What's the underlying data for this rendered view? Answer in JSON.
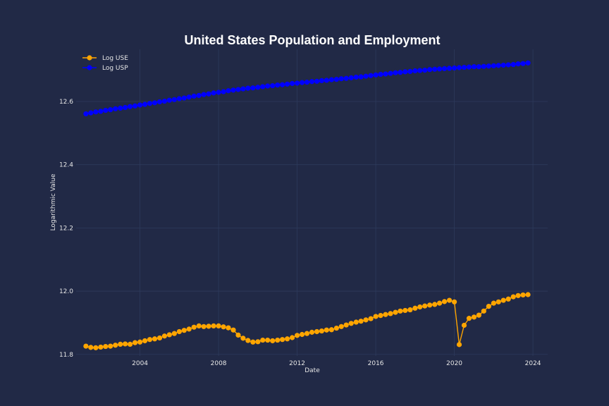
{
  "chart_data": {
    "type": "line",
    "title": "United States Population and Employment",
    "xlabel": "Date",
    "ylabel": "Logarithmic Value",
    "xlim": [
      "2000-10-01",
      "2024-10-01"
    ],
    "ylim": [
      11.795,
      12.765
    ],
    "x_ticks": [
      "2004",
      "2008",
      "2012",
      "2016",
      "2020",
      "2024"
    ],
    "y_ticks": [
      "11.8",
      "12.0",
      "12.2",
      "12.4",
      "12.6"
    ],
    "grid": true,
    "legend_position": "top-left",
    "x": [
      "2001-04-01",
      "2001-07-01",
      "2001-10-01",
      "2002-01-01",
      "2002-04-01",
      "2002-07-01",
      "2002-10-01",
      "2003-01-01",
      "2003-04-01",
      "2003-07-01",
      "2003-10-01",
      "2004-01-01",
      "2004-04-01",
      "2004-07-01",
      "2004-10-01",
      "2005-01-01",
      "2005-04-01",
      "2005-07-01",
      "2005-10-01",
      "2006-01-01",
      "2006-04-01",
      "2006-07-01",
      "2006-10-01",
      "2007-01-01",
      "2007-04-01",
      "2007-07-01",
      "2007-10-01",
      "2008-01-01",
      "2008-04-01",
      "2008-07-01",
      "2008-10-01",
      "2009-01-01",
      "2009-04-01",
      "2009-07-01",
      "2009-10-01",
      "2010-01-01",
      "2010-04-01",
      "2010-07-01",
      "2010-10-01",
      "2011-01-01",
      "2011-04-01",
      "2011-07-01",
      "2011-10-01",
      "2012-01-01",
      "2012-04-01",
      "2012-07-01",
      "2012-10-01",
      "2013-01-01",
      "2013-04-01",
      "2013-07-01",
      "2013-10-01",
      "2014-01-01",
      "2014-04-01",
      "2014-07-01",
      "2014-10-01",
      "2015-01-01",
      "2015-04-01",
      "2015-07-01",
      "2015-10-01",
      "2016-01-01",
      "2016-04-01",
      "2016-07-01",
      "2016-10-01",
      "2017-01-01",
      "2017-04-01",
      "2017-07-01",
      "2017-10-01",
      "2018-01-01",
      "2018-04-01",
      "2018-07-01",
      "2018-10-01",
      "2019-01-01",
      "2019-04-01",
      "2019-07-01",
      "2019-10-01",
      "2020-01-01",
      "2020-04-01",
      "2020-07-01",
      "2020-10-01",
      "2021-01-01",
      "2021-04-01",
      "2021-07-01",
      "2021-10-01",
      "2022-01-01",
      "2022-04-01",
      "2022-07-01",
      "2022-10-01",
      "2023-01-01",
      "2023-04-01",
      "2023-07-01",
      "2023-10-01"
    ],
    "series": [
      {
        "name": "Log USE",
        "color": "#ffa500",
        "values": [
          11.826,
          11.822,
          11.821,
          11.823,
          11.825,
          11.826,
          11.829,
          11.832,
          11.833,
          11.832,
          11.837,
          11.839,
          11.843,
          11.847,
          11.849,
          11.852,
          11.858,
          11.862,
          11.866,
          11.872,
          11.876,
          11.88,
          11.886,
          11.89,
          11.888,
          11.889,
          11.89,
          11.89,
          11.887,
          11.884,
          11.877,
          11.861,
          11.851,
          11.844,
          11.839,
          11.84,
          11.845,
          11.845,
          11.843,
          11.845,
          11.847,
          11.849,
          11.853,
          11.86,
          11.863,
          11.866,
          11.87,
          11.872,
          11.874,
          11.877,
          11.878,
          11.883,
          11.888,
          11.893,
          11.898,
          11.902,
          11.905,
          11.909,
          11.913,
          11.92,
          11.923,
          11.926,
          11.929,
          11.933,
          11.937,
          11.939,
          11.941,
          11.946,
          11.95,
          11.953,
          11.956,
          11.958,
          11.962,
          11.967,
          11.971,
          11.966,
          11.831,
          11.892,
          11.914,
          11.918,
          11.924,
          11.937,
          11.952,
          11.962,
          11.966,
          11.971,
          11.975,
          11.982,
          11.986,
          11.988,
          11.989
        ]
      },
      {
        "name": "Log USP",
        "color": "#0000ff",
        "values": [
          12.561,
          12.564,
          12.567,
          12.569,
          12.572,
          12.574,
          12.577,
          12.579,
          12.581,
          12.584,
          12.586,
          12.589,
          12.591,
          12.594,
          12.596,
          12.599,
          12.601,
          12.604,
          12.606,
          12.609,
          12.611,
          12.614,
          12.617,
          12.619,
          12.622,
          12.624,
          12.627,
          12.629,
          12.631,
          12.634,
          12.636,
          12.638,
          12.64,
          12.642,
          12.643,
          12.645,
          12.647,
          12.649,
          12.65,
          12.652,
          12.653,
          12.655,
          12.657,
          12.658,
          12.66,
          12.661,
          12.663,
          12.664,
          12.666,
          12.667,
          12.669,
          12.67,
          12.672,
          12.673,
          12.675,
          12.677,
          12.678,
          12.68,
          12.682,
          12.684,
          12.686,
          12.687,
          12.689,
          12.691,
          12.692,
          12.694,
          12.695,
          12.697,
          12.698,
          12.699,
          12.701,
          12.702,
          12.703,
          12.704,
          12.705,
          12.706,
          12.707,
          12.708,
          12.709,
          12.71,
          12.71,
          12.711,
          12.712,
          12.713,
          12.714,
          12.715,
          12.716,
          12.717,
          12.719,
          12.72,
          12.722
        ]
      }
    ]
  }
}
